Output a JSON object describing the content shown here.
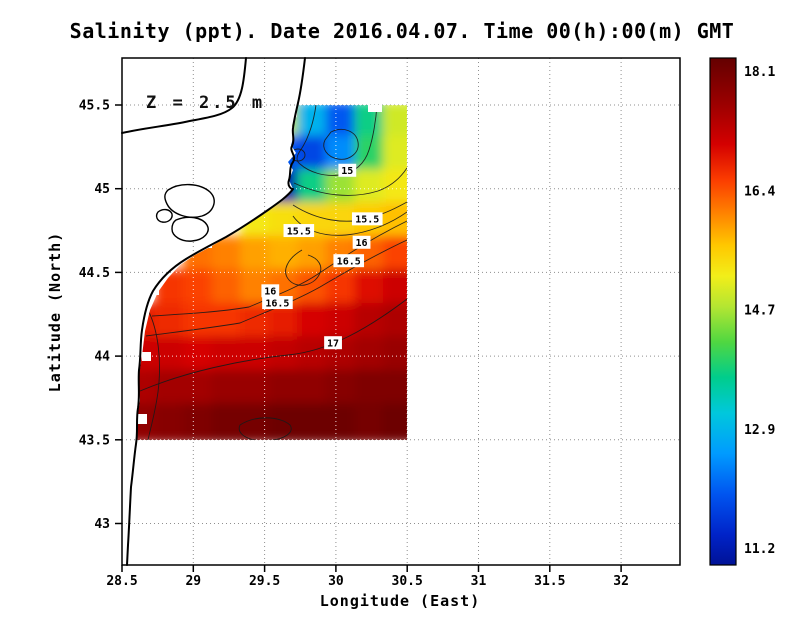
{
  "title": "Salinity (ppt). Date 2016.04.07. Time 00(h):00(m) GMT",
  "annotation": "Z = 2.5 m",
  "axes": {
    "x": {
      "label": "Longitude (East)",
      "ticks": [
        {
          "value": 28.5,
          "label": "28.5"
        },
        {
          "value": 29,
          "label": "29"
        },
        {
          "value": 29.5,
          "label": "29.5"
        },
        {
          "value": 30,
          "label": "30"
        },
        {
          "value": 30.5,
          "label": "30.5"
        },
        {
          "value": 31,
          "label": "31"
        },
        {
          "value": 31.5,
          "label": "31.5"
        },
        {
          "value": 32,
          "label": "32"
        }
      ]
    },
    "y": {
      "label": "Latitude (North)",
      "ticks": [
        {
          "value": 45.5,
          "label": "45.5"
        },
        {
          "value": 45,
          "label": "45"
        },
        {
          "value": 44.5,
          "label": "44.5"
        },
        {
          "value": 44,
          "label": "44"
        },
        {
          "value": 43.5,
          "label": "43.5"
        },
        {
          "value": 43,
          "label": "43"
        }
      ]
    }
  },
  "colorbar": {
    "vmin": 11.2,
    "vmax": 18.1,
    "tick_labels": [
      "18.1",
      "16.4",
      "14.7",
      "12.9",
      "11.2"
    ],
    "stops": [
      [
        0.0,
        "#640000"
      ],
      [
        0.09,
        "#9b0000"
      ],
      [
        0.17,
        "#d40000"
      ],
      [
        0.24,
        "#fb3c00"
      ],
      [
        0.3,
        "#ff7c00"
      ],
      [
        0.37,
        "#ffc800"
      ],
      [
        0.43,
        "#f2ee19"
      ],
      [
        0.49,
        "#b4e632"
      ],
      [
        0.56,
        "#50d741"
      ],
      [
        0.63,
        "#00cd8c"
      ],
      [
        0.7,
        "#00c8dc"
      ],
      [
        0.78,
        "#009bff"
      ],
      [
        0.86,
        "#0055f0"
      ],
      [
        0.94,
        "#0023c8"
      ],
      [
        1.0,
        "#001296"
      ]
    ]
  },
  "chart_data": {
    "type": "heatmap",
    "variable": "Salinity (ppt)",
    "date": "2016.04.07",
    "time": "00(h):00(m) GMT",
    "depth": "Z = 2.5 m",
    "xlabel": "Longitude (East)",
    "ylabel": "Latitude (North)",
    "xlim": [
      28.5,
      32.4
    ],
    "ylim": [
      42.75,
      45.78
    ],
    "colorbar_ticks": [
      18.1,
      16.4,
      14.7,
      12.9,
      11.2
    ],
    "grid_lons": [
      28.65,
      28.85,
      29.05,
      29.25,
      29.45,
      29.65,
      29.85,
      30.05,
      30.25,
      30.45
    ],
    "grid_lats": [
      45.4,
      45.2,
      45.0,
      44.8,
      44.6,
      44.4,
      44.2,
      44.0,
      43.8,
      43.6
    ],
    "values": [
      [
        null,
        null,
        null,
        null,
        null,
        14.8,
        13.0,
        12.2,
        13.8,
        14.9
      ],
      [
        null,
        null,
        null,
        null,
        null,
        12.2,
        12.0,
        12.6,
        14.0,
        15.0
      ],
      [
        null,
        null,
        null,
        null,
        null,
        11.4,
        13.8,
        14.6,
        15.0,
        15.2
      ],
      [
        null,
        null,
        null,
        null,
        15.2,
        15.3,
        15.4,
        15.4,
        15.5,
        15.6
      ],
      [
        null,
        null,
        16.1,
        16.0,
        15.8,
        15.7,
        15.8,
        16.0,
        16.2,
        16.4
      ],
      [
        null,
        16.5,
        16.4,
        16.2,
        16.0,
        16.1,
        16.3,
        16.5,
        16.8,
        17.0
      ],
      [
        16.7,
        16.6,
        16.5,
        16.5,
        16.6,
        16.7,
        16.9,
        17.0,
        17.2,
        17.3
      ],
      [
        17.0,
        17.0,
        16.9,
        17.0,
        17.0,
        17.1,
        17.2,
        17.3,
        17.4,
        17.5
      ],
      [
        17.3,
        17.4,
        17.4,
        17.5,
        17.5,
        17.6,
        17.6,
        17.7,
        17.8,
        17.8
      ],
      [
        17.6,
        17.7,
        17.8,
        17.9,
        17.9,
        18.0,
        18.0,
        18.0,
        17.9,
        18.0
      ]
    ],
    "contour_levels": [
      15,
      15.5,
      16,
      16.5,
      17
    ],
    "contour_labels": [
      {
        "level": "15",
        "lon": 30.08,
        "lat": 45.11
      },
      {
        "level": "15.5",
        "lon": 30.22,
        "lat": 44.82
      },
      {
        "level": "15.5",
        "lon": 29.74,
        "lat": 44.75
      },
      {
        "level": "16",
        "lon": 30.18,
        "lat": 44.68
      },
      {
        "level": "16.5",
        "lon": 30.09,
        "lat": 44.57
      },
      {
        "level": "16",
        "lon": 29.54,
        "lat": 44.39
      },
      {
        "level": "16.5",
        "lon": 29.59,
        "lat": 44.32
      },
      {
        "level": "17",
        "lon": 29.98,
        "lat": 44.08
      }
    ]
  }
}
